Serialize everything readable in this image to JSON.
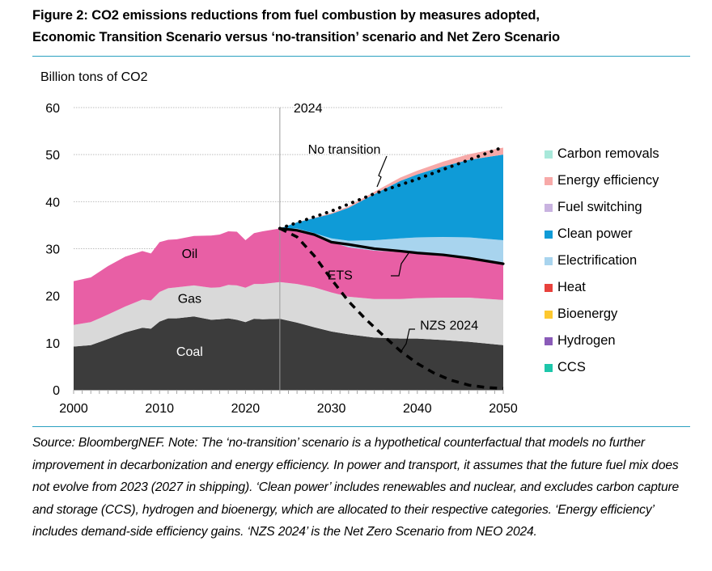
{
  "header": {
    "title_line1": "Figure 2: CO2 emissions reductions from fuel combustion by measures adopted,",
    "title_line2": "Economic Transition Scenario versus ‘no-transition’ scenario and Net Zero Scenario"
  },
  "footer": {
    "note": "Source: BloombergNEF. Note: The ‘no-transition’ scenario is a hypothetical counterfactual that models no further improvement in decarbonization and energy efficiency. In power and transport, it assumes that the future fuel mix does not evolve from 2023 (2027 in shipping). ‘Clean power’ includes renewables and nuclear, and excludes carbon capture and storage (CCS), hydrogen and bioenergy, which are allocated to their respective categories. ‘Energy efficiency’ includes demand-side efficiency gains. ‘NZS 2024’ is the Net Zero Scenario from NEO 2024."
  },
  "chart_data": {
    "type": "area",
    "title": "Figure 2: CO2 emissions reductions from fuel combustion by measures adopted, Economic Transition Scenario versus ‘no-transition’ scenario and Net Zero Scenario",
    "ylabel": "Billion tons of CO2",
    "xlabel": "",
    "xlim": [
      2000,
      2050
    ],
    "ylim": [
      0,
      60
    ],
    "xticks": [
      2000,
      2010,
      2020,
      2030,
      2040,
      2050
    ],
    "yticks": [
      0,
      10,
      20,
      30,
      40,
      50,
      60
    ],
    "grid": true,
    "vertical_marker": {
      "x": 2024,
      "label": "2024"
    },
    "legend_position": "right",
    "colors": {
      "coal": "#3c3c3c",
      "gas": "#d9d9d9",
      "oil": "#e85fa5",
      "electrification": "#a8d4ee",
      "clean_power": "#0f9bd7",
      "energy_efficiency": "#f7a9a8",
      "fuel_switching": "#c9b3e0",
      "carbon_removals": "#a8e8da",
      "heat": "#e8413c",
      "bioenergy": "#fdc82f",
      "hydrogen": "#8a5bb8",
      "ccs": "#1dc6aa"
    },
    "legend": [
      {
        "name": "Carbon removals",
        "key": "carbon_removals"
      },
      {
        "name": "Energy efficiency",
        "key": "energy_efficiency"
      },
      {
        "name": "Fuel switching",
        "key": "fuel_switching"
      },
      {
        "name": "Clean power",
        "key": "clean_power"
      },
      {
        "name": "Electrification",
        "key": "electrification"
      },
      {
        "name": "Heat",
        "key": "heat"
      },
      {
        "name": "Bioenergy",
        "key": "bioenergy"
      },
      {
        "name": "Hydrogen",
        "key": "hydrogen"
      },
      {
        "name": "CCS",
        "key": "ccs"
      }
    ],
    "x": [
      2000,
      2002,
      2004,
      2006,
      2008,
      2009,
      2010,
      2011,
      2012,
      2014,
      2016,
      2017,
      2018,
      2019,
      2020,
      2021,
      2022,
      2024,
      2026,
      2028,
      2030,
      2032,
      2035,
      2038,
      2040,
      2043,
      2046,
      2050
    ],
    "series": [
      {
        "name": "Coal",
        "key": "coal",
        "label": "Coal",
        "values": [
          9.2,
          9.5,
          10.8,
          12.2,
          13.2,
          13.0,
          14.5,
          15.2,
          15.2,
          15.6,
          14.9,
          15.0,
          15.2,
          14.9,
          14.4,
          15.1,
          15.0,
          15.1,
          14.3,
          13.3,
          12.4,
          11.8,
          11.1,
          10.9,
          10.9,
          10.6,
          10.2,
          9.5
        ]
      },
      {
        "name": "Gas",
        "key": "gas",
        "values": [
          4.6,
          4.9,
          5.2,
          5.5,
          6.0,
          6.0,
          6.3,
          6.4,
          6.6,
          6.6,
          6.8,
          6.8,
          7.1,
          7.3,
          7.3,
          7.4,
          7.5,
          7.8,
          8.2,
          8.5,
          8.3,
          8.0,
          8.2,
          8.4,
          8.6,
          9.0,
          9.4,
          9.6
        ]
      },
      {
        "name": "Oil",
        "key": "oil",
        "values": [
          9.3,
          9.5,
          10.3,
          10.6,
          10.3,
          10.0,
          10.6,
          10.3,
          10.2,
          10.5,
          11.1,
          11.2,
          11.4,
          11.4,
          10.1,
          10.8,
          11.2,
          11.4,
          11.7,
          11.2,
          10.7,
          10.5,
          10.3,
          10.0,
          9.6,
          9.1,
          8.5,
          7.7
        ]
      },
      {
        "name": "Electrification",
        "key": "electrification",
        "values": [
          0,
          0,
          0,
          0,
          0,
          0,
          0,
          0,
          0,
          0,
          0,
          0,
          0,
          0,
          0,
          0,
          0,
          0,
          0.1,
          0.3,
          0.8,
          1.4,
          2.2,
          2.9,
          3.3,
          3.8,
          4.3,
          5.0
        ]
      },
      {
        "name": "Clean power",
        "key": "clean_power",
        "values": [
          0,
          0,
          0,
          0,
          0,
          0,
          0,
          0,
          0,
          0,
          0,
          0,
          0,
          0,
          0,
          0,
          0,
          0,
          1.3,
          3.2,
          5.2,
          7.0,
          9.8,
          12.2,
          13.4,
          15.0,
          16.5,
          18.2
        ]
      },
      {
        "name": "Energy efficiency",
        "key": "energy_efficiency",
        "values": [
          0,
          0,
          0,
          0,
          0,
          0,
          0,
          0,
          0,
          0,
          0,
          0,
          0,
          0,
          0,
          0,
          0,
          0,
          0.05,
          0.1,
          0.2,
          0.3,
          0.5,
          0.7,
          0.8,
          1.0,
          1.2,
          1.5
        ]
      }
    ],
    "lines": [
      {
        "name": "No transition",
        "style": "dotted",
        "x": [
          2024,
          2030,
          2035,
          2040,
          2045,
          2050
        ],
        "values": [
          34.3,
          38.0,
          41.7,
          44.8,
          48.2,
          51.6
        ]
      },
      {
        "name": "ETS",
        "style": "solid",
        "x": [
          2024,
          2026,
          2028,
          2029,
          2030,
          2032,
          2035,
          2038,
          2040,
          2043,
          2046,
          2050
        ],
        "values": [
          34.3,
          33.9,
          33.0,
          32.2,
          31.4,
          30.9,
          30.0,
          29.5,
          29.1,
          28.7,
          28.0,
          26.8
        ]
      },
      {
        "name": "NZS 2024",
        "style": "dashed",
        "x": [
          2024,
          2026,
          2028,
          2030,
          2032,
          2034,
          2036,
          2038,
          2040,
          2042,
          2044,
          2046,
          2048,
          2050
        ],
        "values": [
          34.3,
          32.5,
          28.5,
          23.5,
          18.8,
          15.0,
          11.6,
          8.3,
          5.6,
          3.5,
          2.0,
          1.0,
          0.5,
          0.3
        ]
      }
    ],
    "annotations": [
      {
        "text": "Oil",
        "x": 2013.5,
        "y": 28
      },
      {
        "text": "Gas",
        "x": 2013.5,
        "y": 18.5
      },
      {
        "text": "Coal",
        "x": 2013.5,
        "y": 7.2
      },
      {
        "text": "No transition",
        "x": 2031.5,
        "y": 50.2
      },
      {
        "text": "ETS",
        "x": 2031,
        "y": 23.5
      },
      {
        "text": "NZS 2024",
        "x": 2043.7,
        "y": 12.8
      }
    ]
  }
}
